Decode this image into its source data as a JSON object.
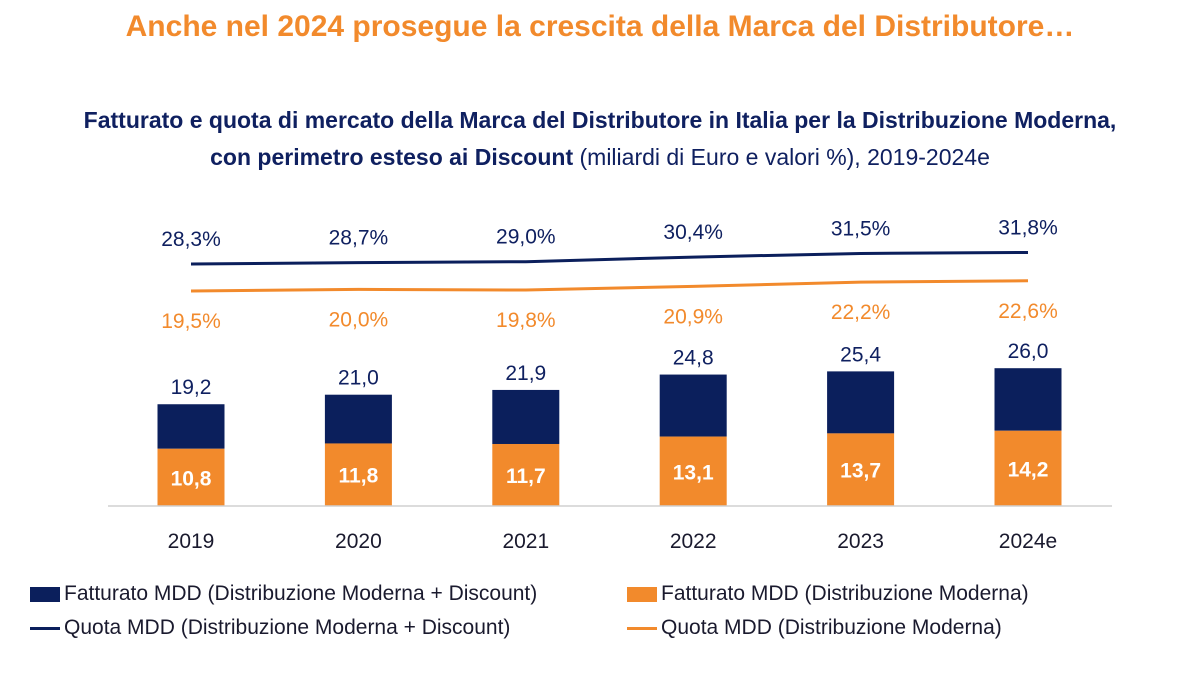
{
  "header": {
    "headline": "Anche nel 2024 prosegue la crescita della Marca del Distributore…",
    "subtitle_bold_1": "Fatturato e quota di mercato della Marca del Distributore in Italia per la Distribuzione Moderna,",
    "subtitle_bold_2": "con perimetro esteso ai Discount",
    "subtitle_normal": " (miliardi di Euro e valori %), 2019-2024e"
  },
  "colors": {
    "navy": "#0b1f5c",
    "orange": "#f28a2c",
    "headline_orange": "#f28a2c",
    "text_dark": "#0f2060"
  },
  "legend": {
    "item1": "Fatturato MDD (Distribuzione Moderna + Discount)",
    "item2": "Fatturato MDD (Distribuzione Moderna)",
    "item3": "Quota MDD (Distribuzione Moderna + Discount)",
    "item4": "Quota MDD (Distribuzione Moderna)"
  },
  "chart_data": {
    "type": "bar",
    "categories": [
      "2019",
      "2020",
      "2021",
      "2022",
      "2023",
      "2024e"
    ],
    "series": [
      {
        "name": "Fatturato MDD (Distribuzione Moderna + Discount)",
        "kind": "bar",
        "values": [
          19.2,
          21.0,
          21.9,
          24.8,
          25.4,
          26.0
        ],
        "labels": [
          "19,2",
          "21,0",
          "21,9",
          "24,8",
          "25,4",
          "26,0"
        ]
      },
      {
        "name": "Fatturato MDD (Distribuzione Moderna)",
        "kind": "bar",
        "values": [
          10.8,
          11.8,
          11.7,
          13.1,
          13.7,
          14.2
        ],
        "labels": [
          "10,8",
          "11,8",
          "11,7",
          "13,1",
          "13,7",
          "14,2"
        ]
      },
      {
        "name": "Quota MDD (Distribuzione Moderna + Discount)",
        "kind": "line",
        "values": [
          28.3,
          28.7,
          29.0,
          30.4,
          31.5,
          31.8
        ],
        "labels": [
          "28,3%",
          "28,7%",
          "29,0%",
          "30,4%",
          "31,5%",
          "31,8%"
        ]
      },
      {
        "name": "Quota MDD (Distribuzione Moderna)",
        "kind": "line",
        "values": [
          19.5,
          20.0,
          19.8,
          20.9,
          22.2,
          22.6
        ],
        "labels": [
          "19,5%",
          "20,0%",
          "19,8%",
          "20,9%",
          "22,2%",
          "22,6%"
        ]
      }
    ],
    "grid": false,
    "legend_position": "bottom"
  }
}
